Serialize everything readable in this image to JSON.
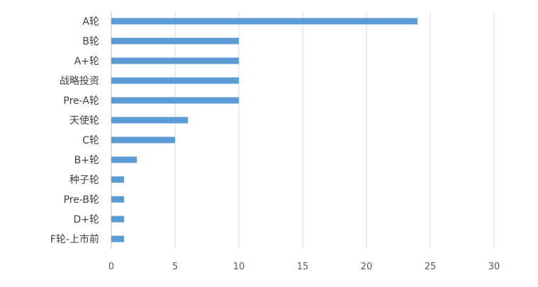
{
  "chart_data": {
    "type": "bar",
    "orientation": "horizontal",
    "categories": [
      "A轮",
      "B轮",
      "A+轮",
      "战略投资",
      "Pre-A轮",
      "天使轮",
      "C轮",
      "B+轮",
      "种子轮",
      "Pre-B轮",
      "D+轮",
      "F轮-上市前"
    ],
    "values": [
      24,
      10,
      10,
      10,
      10,
      6,
      5,
      2,
      1,
      1,
      1,
      1
    ],
    "xlim": [
      0,
      30
    ],
    "xticks": [
      "0",
      "5",
      "10",
      "15",
      "20",
      "25",
      "30"
    ],
    "grid": "vertical",
    "legend": "none",
    "colors": {
      "bar": "#5b9bd5",
      "grid": "#d9d9d9",
      "axis": "#bfbfbf"
    }
  }
}
